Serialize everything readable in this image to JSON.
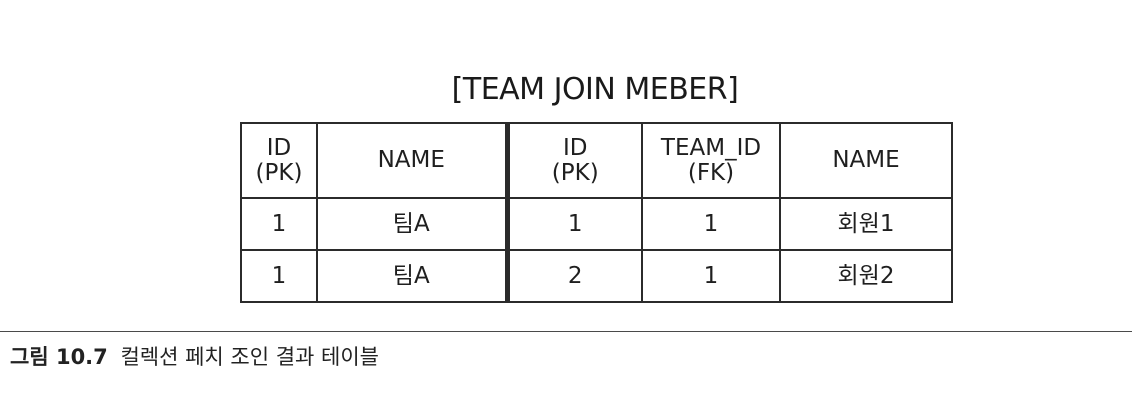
{
  "title": "[TEAM JOIN MEBER]",
  "table": {
    "headers": [
      {
        "line1": "ID",
        "line2": "(PK)"
      },
      {
        "line1": "NAME",
        "line2": ""
      },
      {
        "line1": "ID",
        "line2": "(PK)"
      },
      {
        "line1": "TEAM_ID",
        "line2": "(FK)"
      },
      {
        "line1": "NAME",
        "line2": ""
      }
    ],
    "rows": [
      [
        "1",
        "팀A",
        "1",
        "1",
        "회원1"
      ],
      [
        "1",
        "팀A",
        "2",
        "1",
        "회원2"
      ]
    ]
  },
  "caption": {
    "label": "그림 10.7",
    "text": "컬렉션 페치 조인 결과 테이블"
  }
}
